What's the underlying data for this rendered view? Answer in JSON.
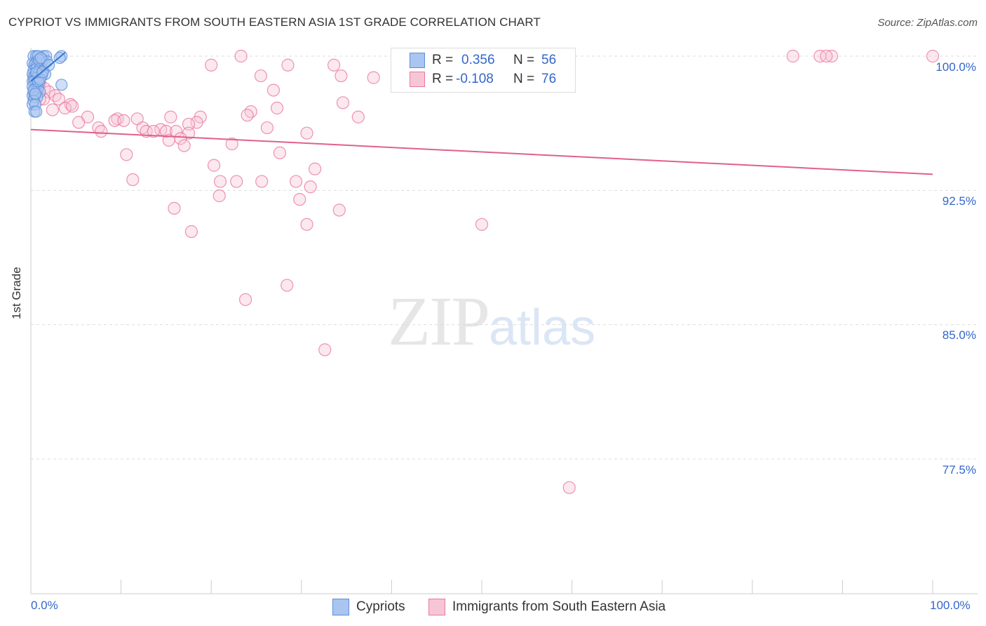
{
  "title": "CYPRIOT VS IMMIGRANTS FROM SOUTH EASTERN ASIA 1ST GRADE CORRELATION CHART",
  "source": "Source: ZipAtlas.com",
  "watermark": {
    "zip": "ZIP",
    "atlas": "atlas"
  },
  "colors": {
    "blue": "#5b8fd9",
    "blue_fill": "#a9c5f0",
    "blue_line": "#3377cc",
    "pink": "#e8799f",
    "pink_fill": "#f7c6d6",
    "pink_line": "#e0608d",
    "grid": "#dddddd",
    "axis_text": "#3366cc"
  },
  "legend": {
    "r_label": "R =",
    "n_label": "N =",
    "rows": [
      {
        "series": "Cypriots",
        "r": "0.356",
        "n": "56"
      },
      {
        "series": "Immigrants from South Eastern Asia",
        "r": "-0.108",
        "n": "76"
      }
    ]
  },
  "chart_data": {
    "type": "scatter",
    "title": "CYPRIOT VS IMMIGRANTS FROM SOUTH EASTERN ASIA 1ST GRADE CORRELATION CHART",
    "xlabel": "",
    "ylabel": "1st Grade",
    "xlim": [
      0,
      100
    ],
    "ylim": [
      70,
      101
    ],
    "x_tick_labels": [
      "0.0%",
      "100.0%"
    ],
    "y_ticks": [
      77.5,
      85.0,
      92.5,
      100.0
    ],
    "y_tick_labels": [
      "77.5%",
      "85.0%",
      "92.5%",
      "100.0%"
    ],
    "grid": true,
    "legend_position": "top-center",
    "series": [
      {
        "name": "Cypriots",
        "r": 0.356,
        "n": 56,
        "trend": {
          "x": [
            0.0,
            3.8
          ],
          "y": [
            98.6,
            100.2
          ]
        },
        "points": [
          [
            0.3,
            100.0
          ],
          [
            0.6,
            100.0
          ],
          [
            1.4,
            100.0
          ],
          [
            3.4,
            100.0
          ],
          [
            0.8,
            100.0
          ],
          [
            1.7,
            100.0
          ],
          [
            3.2,
            99.9
          ],
          [
            0.2,
            99.6
          ],
          [
            0.5,
            99.6
          ],
          [
            0.9,
            99.6
          ],
          [
            1.2,
            99.6
          ],
          [
            1.5,
            99.6
          ],
          [
            0.4,
            99.5
          ],
          [
            0.7,
            99.5
          ],
          [
            1.1,
            99.4
          ],
          [
            0.3,
            99.2
          ],
          [
            0.6,
            99.3
          ],
          [
            1.0,
            99.3
          ],
          [
            1.4,
            99.2
          ],
          [
            0.2,
            99.0
          ],
          [
            0.5,
            99.0
          ],
          [
            0.8,
            99.0
          ],
          [
            1.6,
            99.0
          ],
          [
            0.3,
            98.8
          ],
          [
            0.7,
            98.8
          ],
          [
            1.2,
            98.9
          ],
          [
            0.2,
            98.6
          ],
          [
            0.4,
            98.6
          ],
          [
            0.6,
            98.5
          ],
          [
            0.9,
            98.5
          ],
          [
            3.4,
            98.4
          ],
          [
            0.2,
            98.3
          ],
          [
            0.5,
            98.2
          ],
          [
            0.8,
            98.2
          ],
          [
            0.3,
            98.0
          ],
          [
            0.6,
            98.0
          ],
          [
            1.0,
            98.0
          ],
          [
            0.2,
            97.8
          ],
          [
            0.4,
            97.7
          ],
          [
            0.7,
            97.7
          ],
          [
            0.3,
            97.5
          ],
          [
            0.2,
            97.3
          ],
          [
            0.5,
            97.3
          ],
          [
            0.4,
            96.9
          ],
          [
            0.6,
            96.9
          ],
          [
            1.3,
            99.8
          ],
          [
            1.8,
            99.7
          ],
          [
            2.0,
            99.5
          ],
          [
            0.9,
            99.8
          ],
          [
            1.1,
            99.9
          ],
          [
            0.3,
            98.1
          ],
          [
            0.5,
            97.9
          ],
          [
            0.8,
            98.6
          ],
          [
            1.0,
            98.7
          ],
          [
            0.6,
            99.1
          ],
          [
            1.3,
            99.1
          ]
        ]
      },
      {
        "name": "Immigrants from South Eastern Asia",
        "r": -0.108,
        "n": 76,
        "trend": {
          "x": [
            0,
            100
          ],
          "y": [
            95.9,
            93.4
          ]
        },
        "points": [
          [
            23.3,
            100.0
          ],
          [
            84.5,
            100.0
          ],
          [
            87.5,
            100.0
          ],
          [
            88.8,
            100.0
          ],
          [
            100.0,
            100.0
          ],
          [
            88.2,
            100.0
          ],
          [
            20.0,
            99.5
          ],
          [
            28.5,
            99.5
          ],
          [
            34.4,
            98.9
          ],
          [
            38.0,
            98.8
          ],
          [
            25.5,
            98.9
          ],
          [
            33.6,
            99.5
          ],
          [
            0.4,
            98.7
          ],
          [
            1.0,
            98.5
          ],
          [
            1.5,
            98.2
          ],
          [
            2.0,
            98.0
          ],
          [
            2.7,
            97.8
          ],
          [
            3.1,
            97.6
          ],
          [
            4.4,
            97.3
          ],
          [
            3.8,
            97.1
          ],
          [
            4.6,
            97.2
          ],
          [
            1.4,
            97.6
          ],
          [
            2.4,
            97.0
          ],
          [
            26.9,
            98.1
          ],
          [
            34.6,
            97.4
          ],
          [
            27.3,
            97.1
          ],
          [
            24.4,
            96.9
          ],
          [
            24.0,
            96.7
          ],
          [
            18.8,
            96.6
          ],
          [
            15.5,
            96.6
          ],
          [
            18.4,
            96.3
          ],
          [
            17.5,
            96.2
          ],
          [
            9.6,
            96.5
          ],
          [
            11.8,
            96.5
          ],
          [
            9.3,
            96.4
          ],
          [
            10.3,
            96.4
          ],
          [
            6.3,
            96.6
          ],
          [
            5.3,
            96.3
          ],
          [
            12.4,
            96.0
          ],
          [
            7.5,
            96.0
          ],
          [
            7.8,
            95.8
          ],
          [
            14.4,
            95.9
          ],
          [
            15.0,
            95.8
          ],
          [
            16.1,
            95.8
          ],
          [
            12.8,
            95.8
          ],
          [
            13.6,
            95.8
          ],
          [
            17.5,
            95.7
          ],
          [
            36.3,
            96.6
          ],
          [
            26.2,
            96.0
          ],
          [
            30.6,
            95.7
          ],
          [
            15.3,
            95.3
          ],
          [
            16.6,
            95.4
          ],
          [
            22.3,
            95.1
          ],
          [
            17.0,
            95.0
          ],
          [
            27.6,
            94.6
          ],
          [
            10.6,
            94.5
          ],
          [
            20.3,
            93.9
          ],
          [
            31.5,
            93.7
          ],
          [
            11.3,
            93.1
          ],
          [
            21.0,
            93.0
          ],
          [
            22.8,
            93.0
          ],
          [
            25.6,
            93.0
          ],
          [
            29.4,
            93.0
          ],
          [
            31.0,
            92.7
          ],
          [
            20.9,
            92.2
          ],
          [
            29.8,
            92.0
          ],
          [
            15.9,
            91.5
          ],
          [
            34.2,
            91.4
          ],
          [
            30.6,
            90.6
          ],
          [
            50.0,
            90.6
          ],
          [
            17.8,
            90.2
          ],
          [
            28.4,
            87.2
          ],
          [
            23.8,
            86.4
          ],
          [
            32.6,
            83.6
          ],
          [
            59.7,
            75.9
          ],
          [
            1.0,
            97.6
          ]
        ]
      }
    ]
  }
}
